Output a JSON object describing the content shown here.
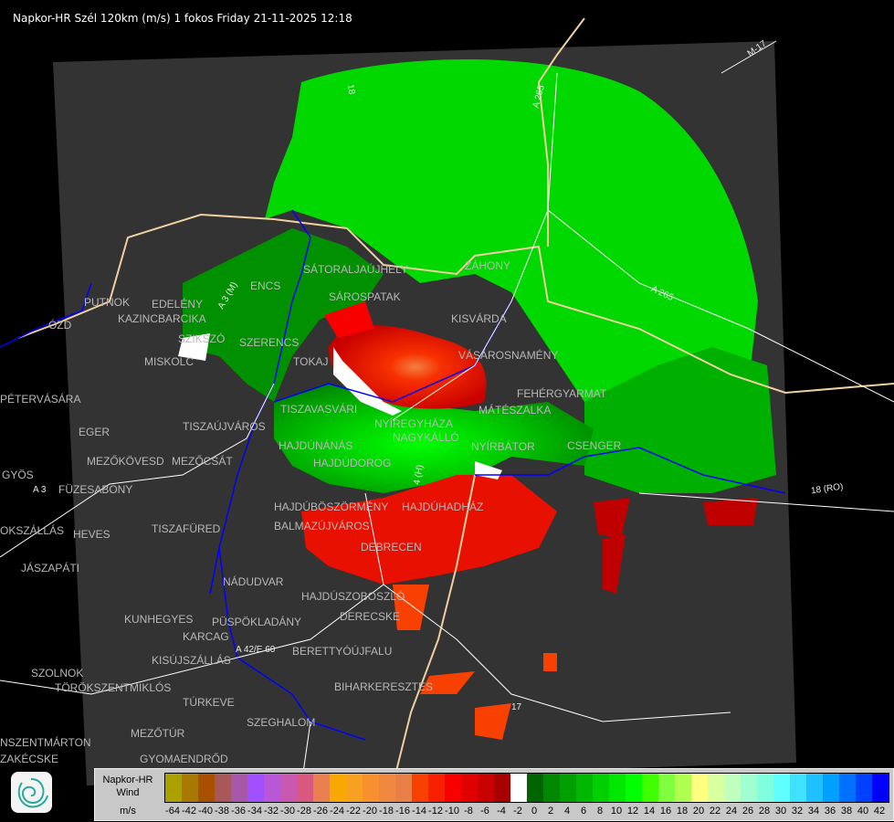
{
  "title": "Napkor-HR Szél 120km (m/s) 1 fokos Friday 21-11-2025 12:18",
  "legend": {
    "product": "Napkor-HR",
    "quantity": "Wind",
    "unit": "m/s",
    "colors": [
      "#aaa000",
      "#a87800",
      "#a85000",
      "#a85858",
      "#a858a8",
      "#a050ff",
      "#b858d8",
      "#c858b0",
      "#d85880",
      "#e88050",
      "#f8a800",
      "#f8a020",
      "#f89030",
      "#f08840",
      "#e88048",
      "#f84000",
      "#f82000",
      "#f80000",
      "#e00000",
      "#c80000",
      "#a80000",
      "#ffffff",
      "#006400",
      "#008800",
      "#00a000",
      "#00b800",
      "#00d000",
      "#00e800",
      "#00ff00",
      "#40ff00",
      "#80ff40",
      "#b0ff50",
      "#ffff80",
      "#d8ffa0",
      "#c0ffc0",
      "#a0ffd0",
      "#80ffe0",
      "#60ffff",
      "#40e0ff",
      "#20c0ff",
      "#00a0ff",
      "#0070ff",
      "#0040ff",
      "#0000ff"
    ],
    "ticks": [
      "-64",
      "-42",
      "-40",
      "-38",
      "-36",
      "-34",
      "-32",
      "-30",
      "-28",
      "-26",
      "-24",
      "-22",
      "-20",
      "-18",
      "-16",
      "-14",
      "-12",
      "-10",
      "-8",
      "-6",
      "-4",
      "-2",
      "0",
      "2",
      "4",
      "6",
      "8",
      "10",
      "12",
      "14",
      "16",
      "18",
      "20",
      "22",
      "24",
      "26",
      "28",
      "30",
      "32",
      "34",
      "36",
      "38",
      "40",
      "42"
    ]
  },
  "cities": [
    "PUTNOK",
    "EDELÉNY",
    "KAZINCBARCIKA",
    "ÓZD",
    "ENCS",
    "SZIKSZÓ",
    "SZERENCS",
    "MISKOLC",
    "TOKAJ",
    "SÁTORALJAÚJHELY",
    "SÁROSPATAK",
    "ZÁHONY",
    "KISVÁRDA",
    "VÁSÁROSNAMÉNY",
    "FEHÉRGYARMAT",
    "MÁTÉSZALKA",
    "CSENGER",
    "NYÍRBÁTOR",
    "NYÍREGYHÁZA",
    "NAGYKÁLLÓ",
    "TISZAVASVÁRI",
    "TISZAÚJVÁROS",
    "HAJDÚNÁNÁS",
    "HAJDÚDOROG",
    "HAJDÚBÖSZÖRMÉNY",
    "HAJDÚHADHÁZ",
    "BALMAZÚJVÁROS",
    "DEBRECEN",
    "NÁDUDVAR",
    "HAJDÚSZOBOSZLÓ",
    "DERECSKE",
    "PÜSPÖKLADÁNY",
    "KARCAG",
    "BERETTYÓÚJFALU",
    "BIHARKERESZTES",
    "SZEGHALOM",
    "PÉTERVÁSÁRA",
    "EGER",
    "MEZŐKÖVESD",
    "MEZŐCSÁT",
    "GYÖS",
    "FÜZESABONY",
    "TISZAFÜRED",
    "HEVES",
    "JÁSZAPÁTI",
    "KUNHEGYES",
    "KISÚJSZÁLLÁS",
    "SZOLNOK",
    "TÖRÖKSZENTMIKLÓS",
    "TÚRKEVE",
    "MEZŐTÚR",
    "GYOMAENDRŐD",
    "ZAKÉCSKE",
    "NSZENTMÁRTON",
    "OKSZÁLLÁS"
  ],
  "roads": [
    "A 3 (M)",
    "A 3",
    "M-17",
    "A 265",
    "A 265",
    "18 (RO)",
    "A 42/E 60",
    "17",
    "18",
    "4 (H)"
  ],
  "colors": {
    "map_background": "#333333",
    "outside": "#000000",
    "country_border": "#f0d0a0",
    "rivers": "#0000ff",
    "streams": "#4a80c0",
    "roads": "#ffffff"
  }
}
